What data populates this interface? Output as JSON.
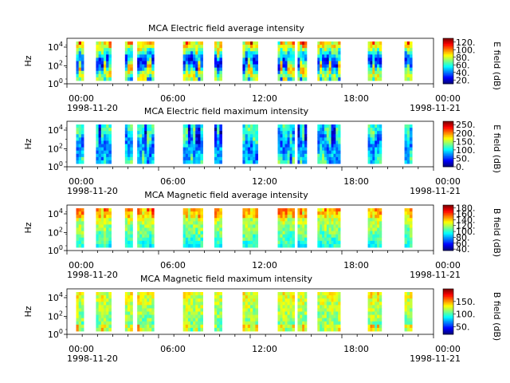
{
  "chart_data": [
    {
      "type": "heatmap",
      "title": "MCA  Electric field average intensity",
      "ylabel": "Hz",
      "y_ticks": [
        {
          "b": "10",
          "e": "0"
        },
        {
          "b": "10",
          "e": "2"
        },
        {
          "b": "10",
          "e": "4"
        }
      ],
      "x_ticks": [
        "00:00",
        "06:00",
        "12:00",
        "18:00",
        "00:00"
      ],
      "x_dates": [
        "1998-11-20",
        "1998-11-21"
      ],
      "colorbar": {
        "label": "E field (dB)",
        "range": [
          10,
          130
        ],
        "ticks": [
          "20.",
          "40.",
          "60.",
          "80.",
          "100.",
          "120."
        ]
      },
      "data_intervals_hours": [
        [
          0.6,
          1.1
        ],
        [
          1.9,
          2.9
        ],
        [
          3.8,
          4.3
        ],
        [
          4.6,
          5.7
        ],
        [
          7.6,
          8.9
        ],
        [
          9.65,
          10.15
        ],
        [
          11.5,
          12.5
        ],
        [
          13.8,
          14.9
        ],
        [
          15.1,
          15.7
        ],
        [
          16.4,
          17.9
        ],
        [
          19.7,
          20.6
        ],
        [
          22.1,
          22.6
        ]
      ]
    },
    {
      "type": "heatmap",
      "title": "MCA  Electric field maximum intensity",
      "ylabel": "Hz",
      "y_ticks": [
        {
          "b": "10",
          "e": "0"
        },
        {
          "b": "10",
          "e": "2"
        },
        {
          "b": "10",
          "e": "4"
        }
      ],
      "x_ticks": [
        "00:00",
        "06:00",
        "12:00",
        "18:00",
        "00:00"
      ],
      "x_dates": [
        "1998-11-20",
        "1998-11-21"
      ],
      "colorbar": {
        "label": "E field (dB)",
        "range": [
          0,
          270
        ],
        "ticks": [
          "0.",
          "50.",
          "100.",
          "150.",
          "200.",
          "250."
        ]
      },
      "data_intervals_hours": [
        [
          0.6,
          1.1
        ],
        [
          1.9,
          2.9
        ],
        [
          3.8,
          4.3
        ],
        [
          4.6,
          5.7
        ],
        [
          7.6,
          8.9
        ],
        [
          9.65,
          10.15
        ],
        [
          11.5,
          12.5
        ],
        [
          13.8,
          14.9
        ],
        [
          15.1,
          15.7
        ],
        [
          16.4,
          17.9
        ],
        [
          19.7,
          20.6
        ],
        [
          22.1,
          22.6
        ]
      ]
    },
    {
      "type": "heatmap",
      "title": "MCA  Magnetic field average intensity",
      "ylabel": "Hz",
      "y_ticks": [
        {
          "b": "10",
          "e": "0"
        },
        {
          "b": "10",
          "e": "2"
        },
        {
          "b": "10",
          "e": "4"
        }
      ],
      "x_ticks": [
        "00:00",
        "06:00",
        "12:00",
        "18:00",
        "00:00"
      ],
      "x_dates": [
        "1998-11-20",
        "1998-11-21"
      ],
      "colorbar": {
        "label": "B field (dB)",
        "range": [
          35,
          190
        ],
        "ticks": [
          "40.",
          "60.",
          "80.",
          "100.",
          "120.",
          "140.",
          "160.",
          "180."
        ]
      },
      "data_intervals_hours": [
        [
          0.6,
          1.1
        ],
        [
          1.9,
          2.9
        ],
        [
          3.8,
          4.3
        ],
        [
          4.6,
          5.7
        ],
        [
          7.6,
          8.9
        ],
        [
          9.65,
          10.15
        ],
        [
          11.5,
          12.5
        ],
        [
          13.8,
          14.9
        ],
        [
          15.1,
          15.7
        ],
        [
          16.4,
          17.9
        ],
        [
          19.7,
          20.6
        ],
        [
          22.1,
          22.6
        ]
      ]
    },
    {
      "type": "heatmap",
      "title": "MCA  Magnetic field maximum intensity",
      "ylabel": "Hz",
      "y_ticks": [
        {
          "b": "10",
          "e": "0"
        },
        {
          "b": "10",
          "e": "2"
        },
        {
          "b": "10",
          "e": "4"
        }
      ],
      "x_ticks": [
        "00:00",
        "06:00",
        "12:00",
        "18:00",
        "00:00"
      ],
      "x_dates": [
        "1998-11-20",
        "1998-11-21"
      ],
      "colorbar": {
        "label": "B field (dB)",
        "range": [
          20,
          200
        ],
        "ticks": [
          "50.",
          "100.",
          "150."
        ]
      },
      "data_intervals_hours": [
        [
          0.6,
          1.1
        ],
        [
          1.9,
          2.9
        ],
        [
          3.8,
          4.3
        ],
        [
          4.6,
          5.7
        ],
        [
          7.6,
          8.9
        ],
        [
          9.65,
          10.15
        ],
        [
          11.5,
          12.5
        ],
        [
          13.8,
          14.9
        ],
        [
          15.1,
          15.7
        ],
        [
          16.4,
          17.9
        ],
        [
          19.7,
          20.6
        ],
        [
          22.1,
          22.6
        ]
      ]
    }
  ]
}
